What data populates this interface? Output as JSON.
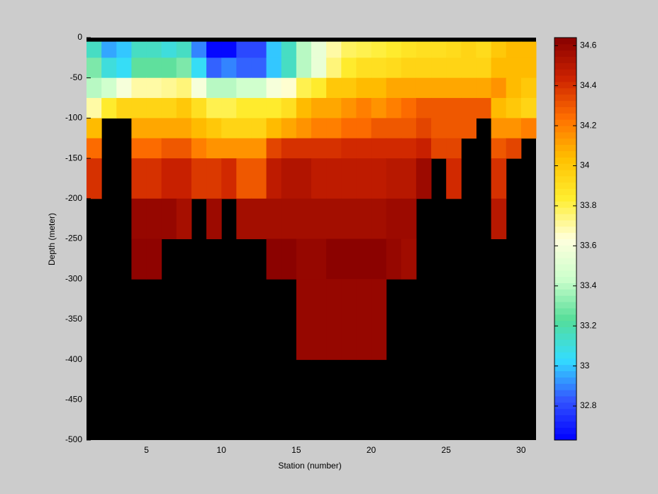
{
  "chart_data": {
    "type": "heatmap",
    "xlabel": "Station (number)",
    "ylabel": "Depth (meter)",
    "x_edges": [
      1,
      2,
      3,
      4,
      5,
      6,
      7,
      8,
      9,
      10,
      11,
      12,
      13,
      14,
      15,
      16,
      17,
      18,
      19,
      20,
      21,
      22,
      23,
      24,
      25,
      26,
      27,
      28,
      29,
      30,
      31
    ],
    "y_edges": [
      0,
      -5,
      -25,
      -50,
      -75,
      -100,
      -125,
      -150,
      -200,
      -250,
      -300,
      -400,
      -500
    ],
    "values": [
      [
        null,
        null,
        null,
        null,
        null,
        null,
        null,
        null,
        null,
        null,
        null,
        null,
        null,
        null,
        null,
        null,
        null,
        null,
        null,
        null,
        null,
        null,
        null,
        null,
        null,
        null,
        null,
        null,
        null,
        null
      ],
      [
        33.15,
        32.95,
        33.0,
        33.15,
        33.15,
        33.1,
        33.15,
        32.9,
        32.65,
        32.65,
        32.8,
        32.8,
        33.0,
        33.15,
        33.4,
        33.55,
        33.7,
        33.78,
        33.8,
        33.82,
        33.85,
        33.88,
        33.9,
        33.9,
        33.92,
        33.95,
        33.92,
        34.0,
        34.05,
        34.05
      ],
      [
        33.3,
        33.1,
        33.05,
        33.25,
        33.25,
        33.25,
        33.3,
        33.05,
        32.85,
        32.9,
        32.85,
        32.85,
        33.0,
        33.15,
        33.4,
        33.55,
        33.75,
        33.85,
        33.9,
        33.9,
        33.92,
        33.95,
        33.95,
        33.95,
        33.95,
        33.95,
        33.95,
        34.05,
        34.05,
        34.05
      ],
      [
        33.4,
        33.45,
        33.6,
        33.7,
        33.7,
        33.72,
        33.75,
        33.6,
        33.4,
        33.4,
        33.45,
        33.45,
        33.6,
        33.65,
        33.8,
        33.85,
        34.0,
        34.0,
        34.05,
        34.05,
        34.1,
        34.1,
        34.1,
        34.1,
        34.1,
        34.1,
        34.1,
        34.15,
        34.05,
        34.0
      ],
      [
        33.7,
        33.85,
        33.95,
        33.95,
        33.95,
        33.95,
        34.0,
        33.9,
        33.8,
        33.8,
        33.85,
        33.85,
        33.85,
        33.9,
        34.05,
        34.1,
        34.1,
        34.15,
        34.2,
        34.15,
        34.2,
        34.25,
        34.3,
        34.3,
        34.3,
        34.3,
        34.3,
        34.05,
        34.0,
        33.95
      ],
      [
        34.05,
        null,
        null,
        34.1,
        34.1,
        34.1,
        34.1,
        34.05,
        34.0,
        33.95,
        33.95,
        33.95,
        34.05,
        34.1,
        34.15,
        34.2,
        34.2,
        34.25,
        34.25,
        34.3,
        34.3,
        34.3,
        34.35,
        34.3,
        34.3,
        34.3,
        null,
        34.15,
        34.15,
        34.2
      ],
      [
        34.25,
        null,
        null,
        34.25,
        34.25,
        34.3,
        34.3,
        34.2,
        34.15,
        34.15,
        34.15,
        34.15,
        34.35,
        34.4,
        34.4,
        34.4,
        34.4,
        34.42,
        34.42,
        34.42,
        34.42,
        34.42,
        34.45,
        34.35,
        34.35,
        null,
        null,
        34.3,
        34.35,
        null
      ],
      [
        34.4,
        null,
        null,
        34.4,
        34.4,
        34.45,
        34.45,
        34.38,
        34.38,
        34.42,
        34.3,
        34.3,
        34.48,
        34.52,
        34.52,
        34.48,
        34.48,
        34.48,
        34.48,
        34.48,
        34.5,
        34.5,
        34.58,
        null,
        34.42,
        null,
        null,
        34.4,
        null,
        null
      ],
      [
        null,
        null,
        null,
        34.6,
        34.6,
        34.6,
        34.55,
        null,
        34.58,
        null,
        34.56,
        34.56,
        34.56,
        34.56,
        34.56,
        34.56,
        34.56,
        34.56,
        34.56,
        34.56,
        34.58,
        34.58,
        null,
        null,
        null,
        null,
        null,
        34.5,
        null,
        null
      ],
      [
        null,
        null,
        null,
        34.62,
        34.62,
        null,
        null,
        null,
        null,
        null,
        null,
        null,
        34.63,
        34.63,
        34.6,
        34.6,
        34.63,
        34.63,
        34.63,
        34.63,
        34.6,
        34.57,
        null,
        null,
        null,
        null,
        null,
        null,
        null,
        null
      ],
      [
        null,
        null,
        null,
        null,
        null,
        null,
        null,
        null,
        null,
        null,
        null,
        null,
        null,
        null,
        34.6,
        34.6,
        34.6,
        34.6,
        34.6,
        34.6,
        null,
        null,
        null,
        null,
        null,
        null,
        null,
        null,
        null,
        null
      ],
      [
        null,
        null,
        null,
        null,
        null,
        null,
        null,
        null,
        null,
        null,
        null,
        null,
        null,
        null,
        null,
        null,
        null,
        null,
        null,
        null,
        null,
        null,
        null,
        null,
        null,
        null,
        null,
        null,
        null,
        null
      ]
    ],
    "xlim": [
      1,
      31
    ],
    "xticks": [
      5,
      10,
      15,
      20,
      25,
      30
    ],
    "ylim": [
      -500,
      0
    ],
    "yticks": [
      -500,
      -450,
      -400,
      -350,
      -300,
      -250,
      -200,
      -150,
      -100,
      -50,
      0
    ],
    "clim": [
      32.63,
      34.64
    ],
    "cticks": [
      32.8,
      33,
      33.2,
      33.4,
      33.6,
      33.8,
      34,
      34.2,
      34.4,
      34.6
    ],
    "colormap": [
      "#0000ff",
      "#3355ff",
      "#33ddff",
      "#55dd99",
      "#ccffcc",
      "#ffffdd",
      "#ffee30",
      "#ffc000",
      "#ff7000",
      "#cc2200",
      "#880000"
    ],
    "missing_color": "#000000"
  }
}
